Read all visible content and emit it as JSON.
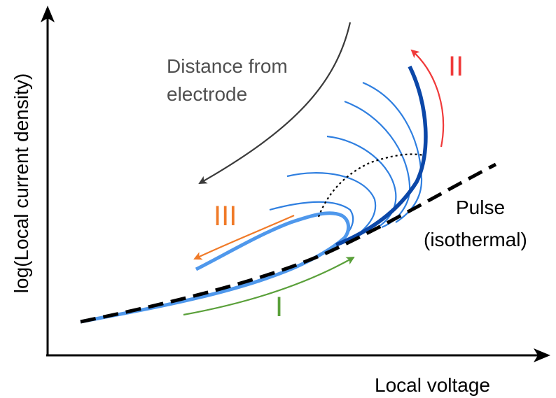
{
  "axes": {
    "x_label": "Local voltage",
    "y_label": "log(Local current density)"
  },
  "annotations": {
    "distance_line1": "Distance from",
    "distance_line2": "electrode",
    "pulse_line1": "Pulse",
    "pulse_line2": "(isothermal)",
    "region_I": "I",
    "region_II": "II",
    "region_III": "III"
  },
  "colors": {
    "axis": "#000000",
    "pulse_curve": "#000000",
    "main_curve_dark": "#0b47a8",
    "main_curve_light": "#4f98ec",
    "family_curves": "#2f7fe0",
    "arrow_I": "#5aa03a",
    "arrow_II": "#f03a3a",
    "arrow_III": "#f07a28",
    "distance_arrow": "#3a3a3a",
    "label_I": "#5aa03a",
    "label_II": "#f03a3a",
    "label_III": "#f07a28",
    "text_gray": "#505050"
  }
}
